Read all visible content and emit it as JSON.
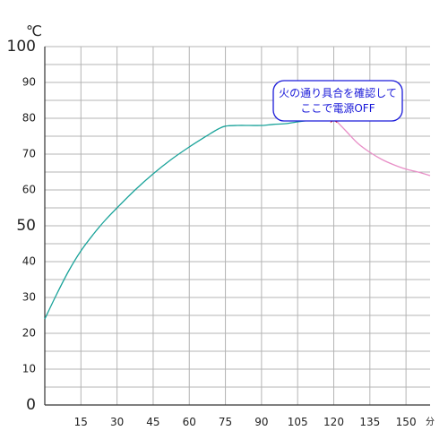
{
  "chart_data": {
    "type": "line",
    "y_unit_label": "℃",
    "x_unit_label": "分",
    "xlim": [
      0,
      160
    ],
    "ylim": [
      0,
      100
    ],
    "x_ticks": [
      {
        "value": 15,
        "label": "15"
      },
      {
        "value": 30,
        "label": "30"
      },
      {
        "value": 45,
        "label": "45"
      },
      {
        "value": 60,
        "label": "60"
      },
      {
        "value": 75,
        "label": "75"
      },
      {
        "value": 90,
        "label": "90"
      },
      {
        "value": 105,
        "label": "105"
      },
      {
        "value": 120,
        "label": "120"
      },
      {
        "value": 135,
        "label": "135"
      },
      {
        "value": 150,
        "label": "150"
      }
    ],
    "y_ticks": [
      {
        "value": 0,
        "label": "0",
        "major": true
      },
      {
        "value": 10,
        "label": "10",
        "major": false
      },
      {
        "value": 20,
        "label": "20",
        "major": false
      },
      {
        "value": 30,
        "label": "30",
        "major": false
      },
      {
        "value": 40,
        "label": "40",
        "major": false
      },
      {
        "value": 50,
        "label": "50",
        "major": true
      },
      {
        "value": 60,
        "label": "60",
        "major": false
      },
      {
        "value": 70,
        "label": "70",
        "major": false
      },
      {
        "value": 80,
        "label": "80",
        "major": false
      },
      {
        "value": 90,
        "label": "90",
        "major": false
      },
      {
        "value": 100,
        "label": "100",
        "major": true
      }
    ],
    "grid": true,
    "series": [
      {
        "color": "#1aa39a",
        "points": [
          [
            0,
            24
          ],
          [
            5,
            31
          ],
          [
            10,
            37.5
          ],
          [
            15,
            43
          ],
          [
            20,
            47.5
          ],
          [
            25,
            51.5
          ],
          [
            30,
            55
          ],
          [
            37.5,
            60
          ],
          [
            45,
            64.5
          ],
          [
            52.5,
            68.5
          ],
          [
            60,
            72
          ],
          [
            67.5,
            75.2
          ],
          [
            72,
            77
          ],
          [
            75,
            77.8
          ],
          [
            80,
            78
          ],
          [
            85,
            78
          ],
          [
            90,
            78
          ],
          [
            95,
            78.3
          ],
          [
            100,
            78.5
          ],
          [
            105,
            79
          ],
          [
            110,
            79.4
          ],
          [
            115,
            79.7
          ],
          [
            120,
            80
          ]
        ]
      },
      {
        "color": "#e88fc7",
        "points": [
          [
            120,
            80
          ],
          [
            125,
            76.5
          ],
          [
            130,
            73
          ],
          [
            135,
            70.5
          ],
          [
            140,
            68.5
          ],
          [
            145,
            67
          ],
          [
            150,
            65.8
          ],
          [
            155,
            65
          ],
          [
            160,
            64
          ]
        ]
      }
    ],
    "marker": {
      "x": 120,
      "y": 80,
      "color": "#e8141c"
    },
    "annotation": {
      "lines": [
        "火の通り具合を確認して",
        "ここで電源OFF"
      ],
      "border_color": "#1a1ad9",
      "text_color": "#1a1ad9"
    }
  }
}
